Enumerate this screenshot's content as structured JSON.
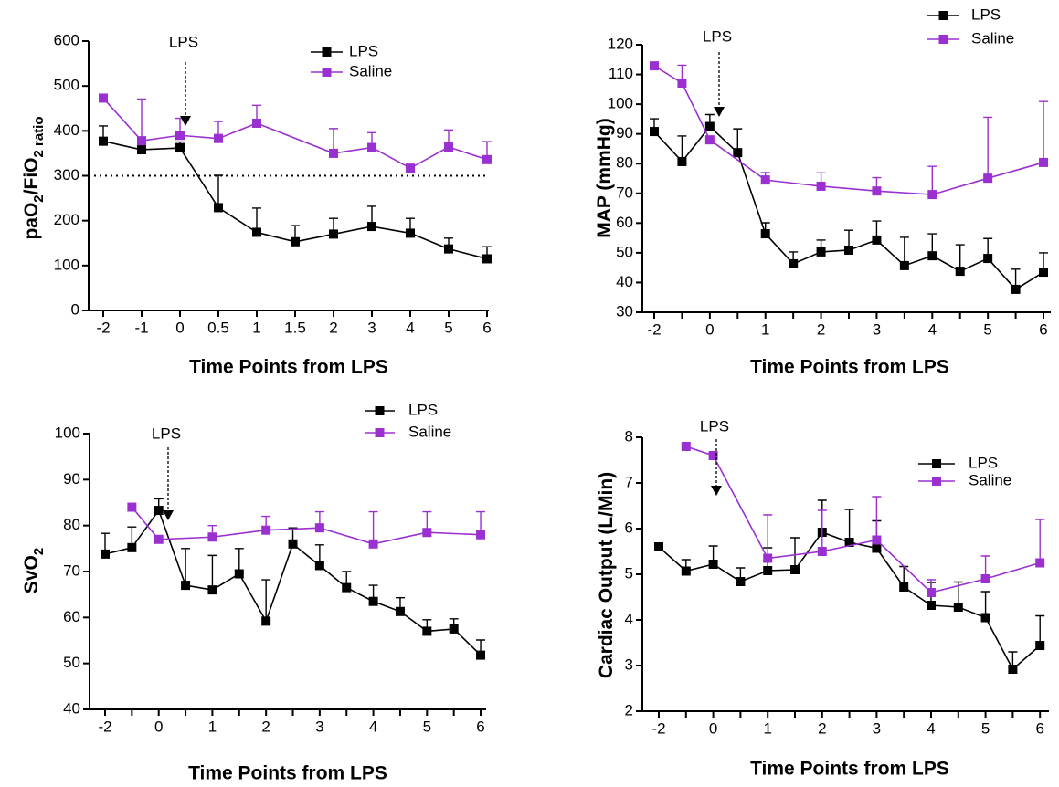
{
  "chart_data": [
    {
      "type": "line",
      "xlabel": "Time Points from LPS",
      "ylabel": [
        "paO",
        "2",
        "/FiO",
        "2 ratio"
      ],
      "annotation": "LPS",
      "categories": [
        "-2",
        "-1",
        "0",
        "0.5",
        "1",
        "1.5",
        "2",
        "3",
        "4",
        "5",
        "6"
      ],
      "ylim": [
        0,
        600
      ],
      "yticks": [
        0,
        100,
        200,
        300,
        400,
        500,
        600
      ],
      "refline": 300,
      "series": [
        {
          "name": "LPS",
          "color": "#000000",
          "values": [
            377,
            358,
            362,
            229,
            174,
            153,
            170,
            187,
            172,
            137,
            115
          ],
          "errors": [
            34,
            10,
            13,
            72,
            54,
            36,
            35,
            45,
            33,
            24,
            27
          ]
        },
        {
          "name": "Saline",
          "color": "#9b30d0",
          "values": [
            473,
            378,
            390,
            383,
            417,
            null,
            350,
            363,
            317,
            364,
            336
          ],
          "errors": [
            null,
            93,
            38,
            38,
            40,
            null,
            55,
            33,
            null,
            38,
            40
          ]
        }
      ]
    },
    {
      "type": "line",
      "xlabel": "Time Points from LPS",
      "ylabel": [
        "MAP (mmHg)"
      ],
      "annotation": "LPS",
      "categories": [
        "-2",
        null,
        "0",
        null,
        "1",
        null,
        "2",
        null,
        "3",
        null,
        "4",
        null,
        "5",
        null,
        "6"
      ],
      "ylim": [
        30,
        120
      ],
      "yticks": [
        30,
        40,
        50,
        60,
        70,
        80,
        90,
        100,
        110,
        120
      ],
      "series": [
        {
          "name": "LPS",
          "color": "#000000",
          "values": [
            90.8,
            80.7,
            92.5,
            83.7,
            56.4,
            46.3,
            50.3,
            50.9,
            54.3,
            45.7,
            49,
            43.8,
            48.1,
            37.7,
            43.5
          ],
          "errors": [
            4.3,
            8.6,
            4,
            8,
            3.7,
            4,
            4,
            6.7,
            6.4,
            9.5,
            7.4,
            8.9,
            6.7,
            6.8,
            6.5
          ]
        },
        {
          "name": "Saline",
          "color": "#9b30d0",
          "values": [
            112.9,
            107.1,
            88,
            null,
            74.5,
            null,
            72.4,
            null,
            70.8,
            null,
            69.6,
            null,
            75.1,
            null,
            80.4
          ],
          "errors": [
            null,
            6,
            null,
            null,
            2.5,
            null,
            4.5,
            null,
            4.5,
            null,
            9.5,
            null,
            20.5,
            null,
            20.5
          ]
        }
      ]
    },
    {
      "type": "line",
      "xlabel": "Time Points from LPS",
      "ylabel": [
        "SvO",
        "2"
      ],
      "annotation": "LPS",
      "categories": [
        "-2",
        null,
        "0",
        null,
        "1",
        null,
        "2",
        null,
        "3",
        null,
        "4",
        null,
        "5",
        null,
        "6"
      ],
      "ylim": [
        40,
        100
      ],
      "yticks": [
        40,
        50,
        60,
        70,
        80,
        90,
        100
      ],
      "series": [
        {
          "name": "LPS",
          "color": "#000000",
          "values": [
            73.8,
            75.2,
            83.3,
            67,
            66,
            69.5,
            59.2,
            76,
            71.3,
            66.5,
            63.5,
            61.3,
            57,
            57.5,
            51.8
          ],
          "errors": [
            4.5,
            4.5,
            2.5,
            8,
            7.5,
            5.5,
            9,
            3.5,
            4.5,
            3.5,
            3.5,
            3,
            2.5,
            2.2,
            3.3
          ]
        },
        {
          "name": "Saline",
          "color": "#9b30d0",
          "values": [
            null,
            84,
            77,
            null,
            77.5,
            null,
            79,
            null,
            79.5,
            null,
            76,
            null,
            78.5,
            null,
            78
          ],
          "errors": [
            null,
            null,
            null,
            null,
            2.5,
            null,
            3,
            null,
            3.5,
            null,
            7,
            null,
            4.5,
            null,
            5
          ]
        }
      ]
    },
    {
      "type": "line",
      "xlabel": "Time Points from LPS",
      "ylabel": [
        "Cardiac Output (L/Min)"
      ],
      "annotation": "LPS",
      "categories": [
        "-2",
        null,
        "0",
        null,
        "1",
        null,
        "2",
        null,
        "3",
        null,
        "4",
        null,
        "5",
        null,
        "6"
      ],
      "ylim": [
        2,
        8
      ],
      "yticks": [
        2,
        3,
        4,
        5,
        6,
        7,
        8
      ],
      "series": [
        {
          "name": "LPS",
          "color": "#000000",
          "values": [
            5.6,
            5.07,
            5.22,
            4.84,
            5.08,
            5.1,
            5.92,
            5.7,
            5.57,
            4.72,
            4.32,
            4.28,
            4.05,
            2.92,
            3.44
          ],
          "errors": [
            null,
            0.25,
            0.4,
            0.3,
            0.5,
            0.7,
            0.7,
            0.72,
            0.6,
            0.45,
            0.5,
            0.55,
            0.57,
            0.38,
            0.65
          ]
        },
        {
          "name": "Saline",
          "color": "#9b30d0",
          "values": [
            null,
            7.8,
            7.6,
            null,
            5.35,
            null,
            5.5,
            null,
            5.75,
            null,
            4.6,
            null,
            4.9,
            null,
            5.25
          ],
          "errors": [
            null,
            null,
            null,
            null,
            0.95,
            null,
            0.9,
            null,
            0.95,
            null,
            0.28,
            null,
            0.5,
            null,
            0.95
          ]
        }
      ]
    }
  ]
}
